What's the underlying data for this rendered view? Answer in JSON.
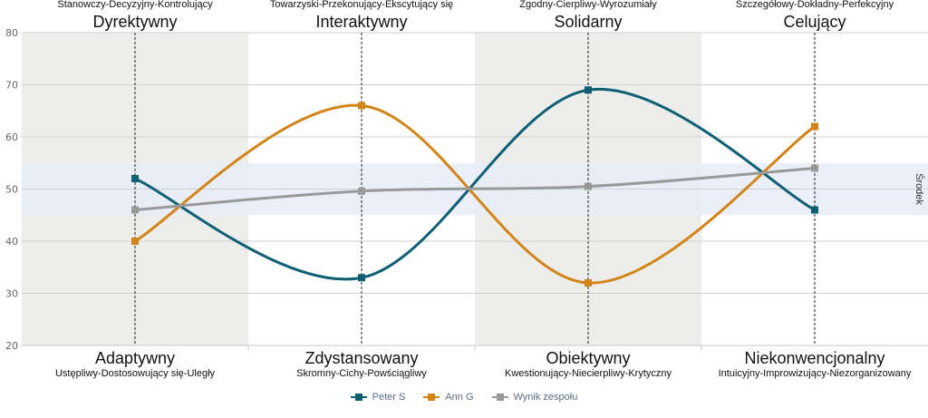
{
  "chart_data": {
    "type": "line",
    "ylim": [
      20,
      80
    ],
    "yticks": [
      20,
      30,
      40,
      50,
      60,
      70,
      80
    ],
    "grid": true,
    "legend_position": "bottom-center",
    "midband": {
      "range": [
        45,
        55
      ],
      "label": "Środek",
      "color": "#e6ecf8"
    },
    "categories": [
      {
        "top": "Dyrektywny",
        "top_desc": "Stanowczy-Decyzyjny-Kontrolujący",
        "bottom": "Adaptywny",
        "bottom_desc": "Ustępliwy-Dostosowujący się-Uległy",
        "shaded": true
      },
      {
        "top": "Interaktywny",
        "top_desc": "Towarzyski-Przekonujący-Ekscytujący się",
        "bottom": "Zdystansowany",
        "bottom_desc": "Skromny-Cichy-Powściągliwy",
        "shaded": false
      },
      {
        "top": "Solidarny",
        "top_desc": "Zgodny-Cierpliwy-Wyrozumiały",
        "bottom": "Obiektywny",
        "bottom_desc": "Kwestionujący-Niecierpliwy-Krytyczny",
        "shaded": true
      },
      {
        "top": "Celujący",
        "top_desc": "Szczegółowy-Dokładny-Perfekcyjny",
        "bottom": "Niekonwencjonalny",
        "bottom_desc": "Intuicyjny-Improwizujący-Niezorganizowany",
        "shaded": false
      }
    ],
    "series": [
      {
        "name": "Peter S",
        "color": "#0e5f73",
        "values": [
          52,
          33,
          69,
          46
        ]
      },
      {
        "name": "Ann G",
        "color": "#d28416",
        "values": [
          40,
          66,
          32,
          62
        ]
      },
      {
        "name": "Wynik zespołu",
        "color": "#999999",
        "values": [
          46,
          49.6,
          50.5,
          54
        ]
      }
    ]
  }
}
